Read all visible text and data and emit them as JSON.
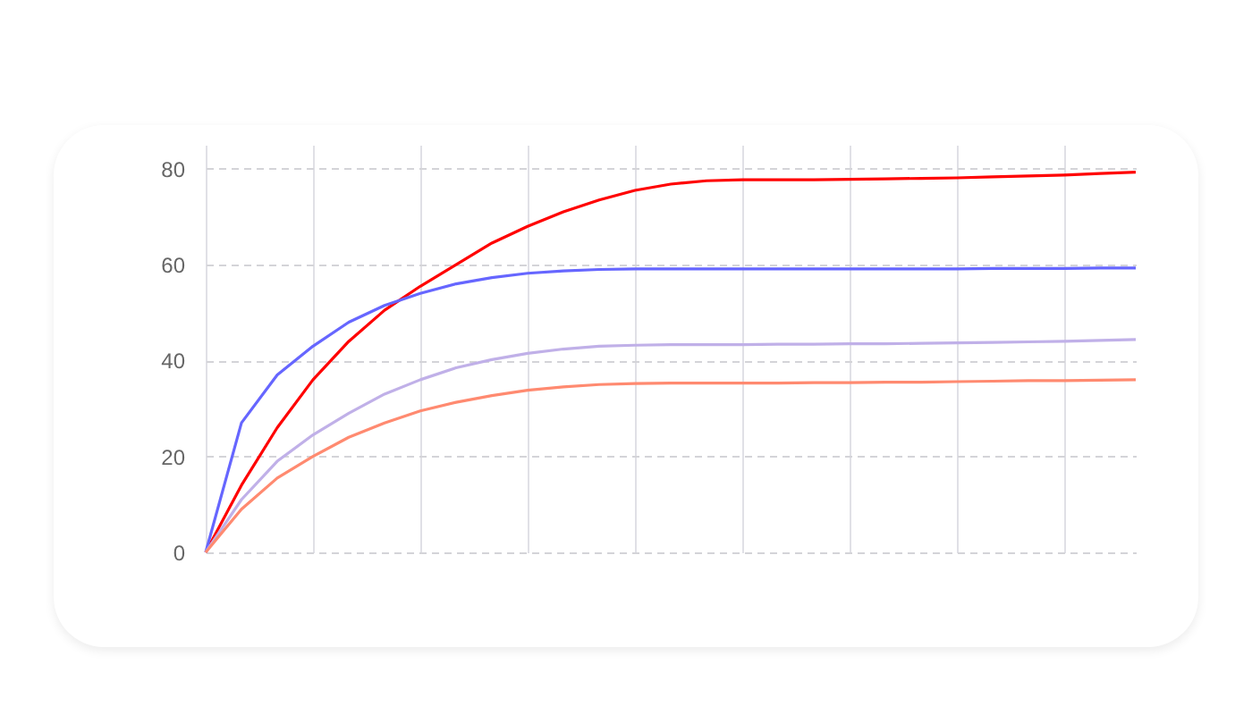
{
  "chart_data": {
    "type": "line",
    "categories": [
      null,
      null,
      null,
      null,
      null,
      null,
      null,
      null,
      null,
      null,
      null,
      null,
      null,
      null,
      null,
      null,
      null,
      null,
      null,
      null,
      null,
      null,
      null,
      null,
      null,
      null,
      null
    ],
    "ylim": [
      0,
      85
    ],
    "yticks": [
      0,
      20,
      40,
      60,
      80
    ],
    "grid": true,
    "legend": false,
    "series": [
      {
        "color": "#ff0000",
        "values": [
          0,
          14,
          26,
          36,
          44,
          50.5,
          55.5,
          60,
          64.5,
          68,
          71,
          73.5,
          75.5,
          76.8,
          77.5,
          77.7,
          77.7,
          77.7,
          77.8,
          77.9,
          78,
          78.1,
          78.3,
          78.5,
          78.7,
          79,
          79.3
        ]
      },
      {
        "color": "#6666ff",
        "values": [
          0,
          27,
          37,
          43,
          48,
          51.5,
          54,
          56,
          57.3,
          58.2,
          58.7,
          59,
          59.1,
          59.1,
          59.1,
          59.1,
          59.1,
          59.1,
          59.1,
          59.1,
          59.1,
          59.1,
          59.2,
          59.2,
          59.2,
          59.3,
          59.3
        ]
      },
      {
        "color": "#c0b0e8",
        "values": [
          0,
          11,
          19,
          24.5,
          29,
          33,
          36,
          38.5,
          40.2,
          41.5,
          42.4,
          43,
          43.2,
          43.3,
          43.3,
          43.3,
          43.4,
          43.4,
          43.5,
          43.5,
          43.6,
          43.7,
          43.8,
          43.9,
          44,
          44.2,
          44.4
        ]
      },
      {
        "color": "#ff8a70",
        "values": [
          0,
          9,
          15.5,
          20,
          24,
          27,
          29.5,
          31.3,
          32.7,
          33.8,
          34.5,
          35,
          35.2,
          35.3,
          35.3,
          35.3,
          35.3,
          35.4,
          35.4,
          35.5,
          35.5,
          35.6,
          35.7,
          35.8,
          35.8,
          35.9,
          36
        ]
      }
    ]
  }
}
